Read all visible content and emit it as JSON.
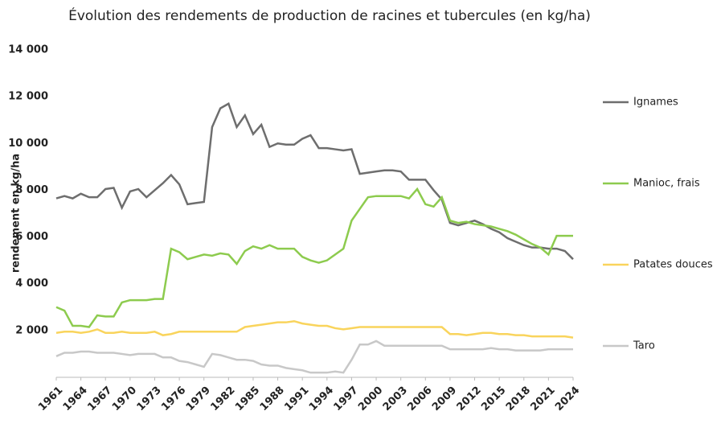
{
  "chart_data": {
    "type": "line",
    "title": "Évolution des rendements de production de racines et tubercules (en kg/ha)",
    "y_label": "rendement en kg/ha",
    "x": [
      1961,
      1962,
      1963,
      1964,
      1965,
      1966,
      1967,
      1968,
      1969,
      1970,
      1971,
      1972,
      1973,
      1974,
      1975,
      1976,
      1977,
      1978,
      1979,
      1980,
      1981,
      1982,
      1983,
      1984,
      1985,
      1986,
      1987,
      1988,
      1989,
      1990,
      1991,
      1992,
      1993,
      1994,
      1995,
      1996,
      1997,
      1998,
      1999,
      2000,
      2001,
      2002,
      2003,
      2004,
      2005,
      2006,
      2007,
      2008,
      2009,
      2010,
      2011,
      2012,
      2013,
      2014,
      2015,
      2016,
      2017,
      2018,
      2019,
      2020,
      2021,
      2022,
      2023,
      2024
    ],
    "xlim": [
      1961,
      2024
    ],
    "xticks": [
      1961,
      1964,
      1967,
      1970,
      1973,
      1976,
      1979,
      1982,
      1985,
      1988,
      1991,
      1994,
      1997,
      2000,
      2003,
      2006,
      2009,
      2012,
      2015,
      2018,
      2021,
      2024
    ],
    "ylim": [
      0,
      14000
    ],
    "yticks": [
      {
        "value": 2000,
        "label": "2 000"
      },
      {
        "value": 4000,
        "label": "4 000"
      },
      {
        "value": 6000,
        "label": "6 000"
      },
      {
        "value": 8000,
        "label": "8 000"
      },
      {
        "value": 10000,
        "label": "10 000"
      },
      {
        "value": 12000,
        "label": "12 000"
      },
      {
        "value": 14000,
        "label": "14 000"
      }
    ],
    "grid": false,
    "legend": "right",
    "series": [
      {
        "name": "Ignames",
        "color": "#6e6e6e",
        "values": [
          7650,
          7750,
          7650,
          7850,
          7700,
          7700,
          8050,
          8100,
          7250,
          7950,
          8050,
          7700,
          8000,
          8300,
          8650,
          8250,
          7400,
          7450,
          7500,
          10700,
          11500,
          11700,
          10700,
          11200,
          10400,
          10800,
          9850,
          10000,
          9950,
          9950,
          10200,
          10350,
          9800,
          9800,
          9750,
          9700,
          9750,
          8700,
          8750,
          8800,
          8850,
          8850,
          8800,
          8450,
          8450,
          8450,
          8000,
          7600,
          6600,
          6500,
          6600,
          6700,
          6550,
          6350,
          6200,
          5950,
          5800,
          5650,
          5550,
          5550,
          5500,
          5500,
          5400,
          5050
        ]
      },
      {
        "name": "Manioc, frais",
        "color": "#8dcb4e",
        "values": [
          3000,
          2850,
          2200,
          2200,
          2150,
          2650,
          2600,
          2600,
          3200,
          3300,
          3300,
          3300,
          3350,
          3350,
          5500,
          5350,
          5050,
          5150,
          5250,
          5200,
          5300,
          5250,
          4850,
          5400,
          5600,
          5500,
          5650,
          5500,
          5500,
          5500,
          5150,
          5000,
          4900,
          5000,
          5250,
          5500,
          6700,
          7200,
          7700,
          7750,
          7750,
          7750,
          7750,
          7650,
          8050,
          7400,
          7300,
          7700,
          6700,
          6600,
          6650,
          6550,
          6500,
          6450,
          6350,
          6250,
          6100,
          5900,
          5700,
          5550,
          5250,
          6050,
          6050,
          6050
        ]
      },
      {
        "name": "Patates douces",
        "color": "#f9d45c",
        "values": [
          1900,
          1950,
          1950,
          1900,
          1950,
          2050,
          1900,
          1900,
          1950,
          1900,
          1900,
          1900,
          1950,
          1800,
          1850,
          1950,
          1950,
          1950,
          1950,
          1950,
          1950,
          1950,
          1950,
          2150,
          2200,
          2250,
          2300,
          2350,
          2350,
          2400,
          2300,
          2250,
          2200,
          2200,
          2100,
          2050,
          2100,
          2150,
          2150,
          2150,
          2150,
          2150,
          2150,
          2150,
          2150,
          2150,
          2150,
          2150,
          1850,
          1850,
          1800,
          1850,
          1900,
          1900,
          1850,
          1850,
          1800,
          1800,
          1750,
          1750,
          1750,
          1750,
          1750,
          1700
        ]
      },
      {
        "name": "Taro",
        "color": "#c8c8c8",
        "values": [
          900,
          1050,
          1050,
          1100,
          1100,
          1050,
          1050,
          1050,
          1000,
          950,
          1000,
          1000,
          1000,
          850,
          850,
          700,
          650,
          550,
          450,
          1000,
          950,
          850,
          750,
          750,
          700,
          550,
          500,
          500,
          400,
          350,
          300,
          200,
          200,
          200,
          250,
          200,
          750,
          1400,
          1400,
          1550,
          1350,
          1350,
          1350,
          1350,
          1350,
          1350,
          1350,
          1350,
          1200,
          1200,
          1200,
          1200,
          1200,
          1250,
          1200,
          1200,
          1150,
          1150,
          1150,
          1150,
          1200,
          1200,
          1200,
          1200
        ]
      }
    ]
  }
}
